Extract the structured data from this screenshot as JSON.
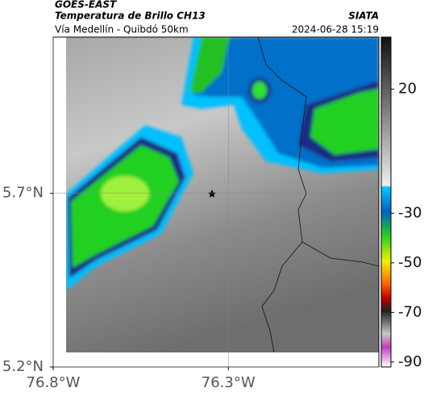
{
  "header": {
    "title": "GOES-EAST",
    "subtitle": "Temperatura de Brillo CH13",
    "area": "Vía Medellín - Quibdó 50km",
    "source": "SIATA",
    "timestamp": "2024-06-28 15:19"
  },
  "map": {
    "xlim": [
      -76.8,
      -75.87
    ],
    "ylim": [
      5.2,
      6.15
    ],
    "xticks": [
      {
        "value": -76.8,
        "label": "76.8°W"
      },
      {
        "value": -76.3,
        "label": "76.3°W"
      }
    ],
    "yticks": [
      {
        "value": 5.2,
        "label": "5.2°N"
      },
      {
        "value": 5.7,
        "label": "5.7°N"
      }
    ]
  },
  "colorbar": {
    "lim": [
      -92,
      41
    ],
    "ticks": [
      20,
      -30,
      -50,
      -70,
      -90
    ]
  }
}
